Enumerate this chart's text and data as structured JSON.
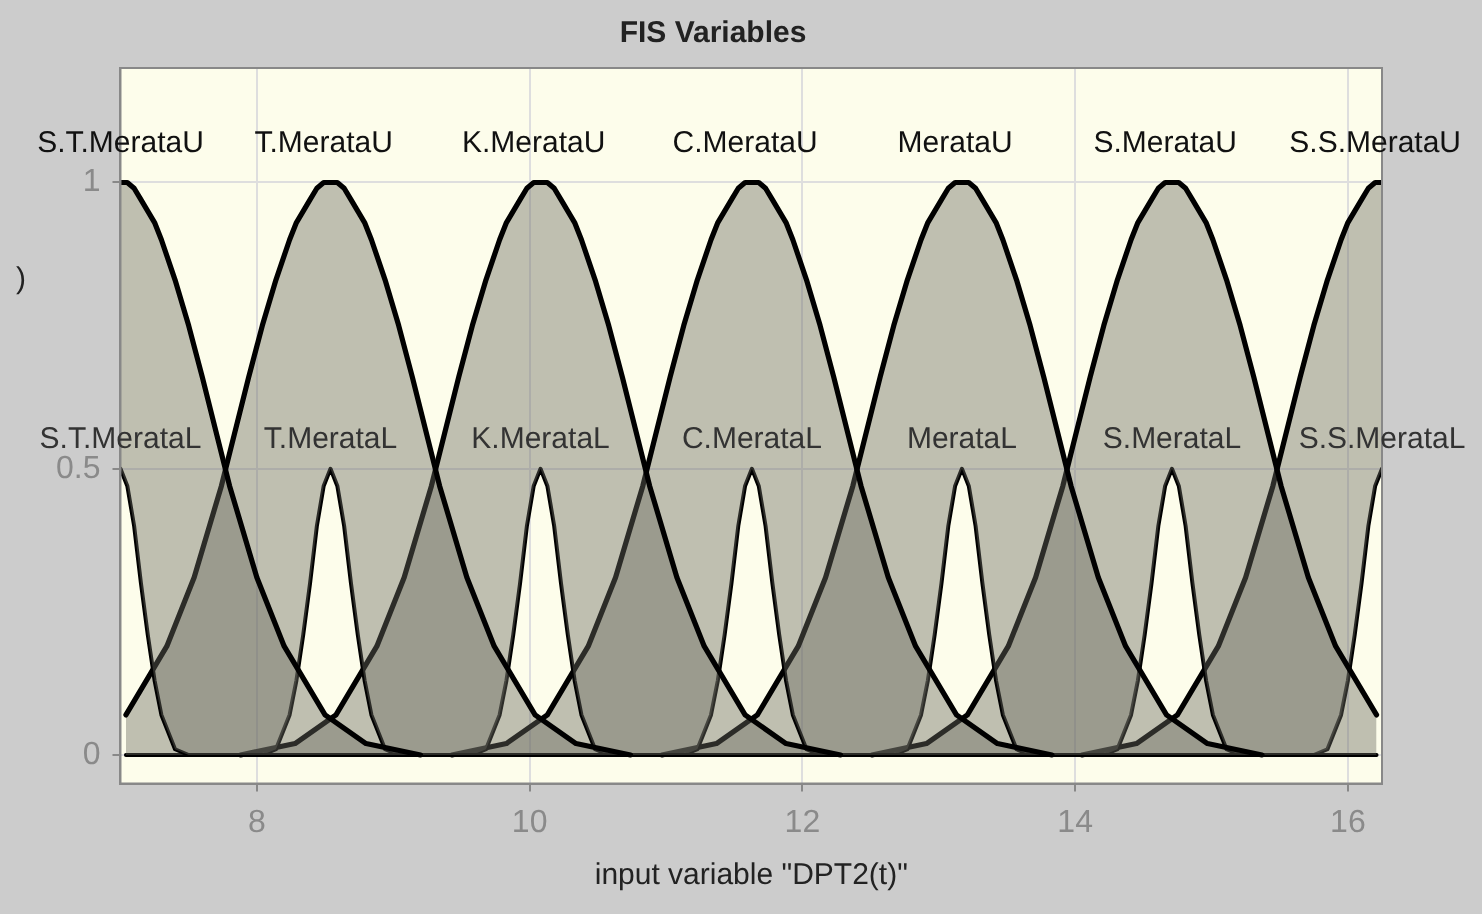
{
  "chart_data": {
    "type": "line",
    "title": "FIS Variables",
    "xlabel": "input variable \"DPT2(t)\"",
    "ylabel": ")",
    "xlim": [
      7,
      16.25
    ],
    "xticks": [
      8,
      10,
      12,
      14,
      16
    ],
    "ylim": [
      -0.05,
      1.2
    ],
    "yticks": [
      0,
      0.5,
      1
    ],
    "grid": true,
    "legend": false,
    "marker": "none",
    "line_style": "solid",
    "series": [
      {
        "name": "S.T.MerataU",
        "type": "area",
        "color": "#000000",
        "x": [
          7,
          7.05,
          7.1,
          7.15,
          7.2,
          7.25,
          7.3,
          7.4,
          7.5,
          7.6,
          7.8,
          8,
          8.2,
          8.5,
          8.8,
          9.2
        ],
        "values": [
          1,
          1,
          0.99,
          0.97,
          0.95,
          0.93,
          0.9,
          0.83,
          0.75,
          0.66,
          0.47,
          0.31,
          0.19,
          0.07,
          0.02,
          0
        ]
      },
      {
        "name": "S.T.MerataL",
        "type": "line",
        "color": "#000000",
        "x": [
          7,
          7.05,
          7.1,
          7.15,
          7.2,
          7.25,
          7.3,
          7.4,
          7.5,
          7.6,
          7.8,
          8,
          8.2,
          8.5,
          8.8,
          9.2
        ],
        "values": [
          0.5,
          0.47,
          0.4,
          0.3,
          0.21,
          0.13,
          0.07,
          0.01,
          0,
          0,
          0,
          0,
          0,
          0,
          0,
          0
        ]
      },
      {
        "name": "T.MerataU",
        "type": "area",
        "color": "#000000",
        "x": [
          7.04,
          7.34,
          7.54,
          7.74,
          7.94,
          8.04,
          8.14,
          8.24,
          8.29,
          8.34,
          8.39,
          8.44,
          8.49,
          8.54,
          8.59,
          8.64,
          8.69,
          8.74,
          8.79,
          8.84,
          8.94,
          9.04,
          9.14,
          9.34,
          9.54,
          9.74,
          10.04,
          10.34,
          10.74
        ],
        "values": [
          0.07,
          0.19,
          0.31,
          0.47,
          0.66,
          0.75,
          0.83,
          0.9,
          0.93,
          0.95,
          0.97,
          0.99,
          1,
          1,
          1,
          0.99,
          0.97,
          0.95,
          0.93,
          0.9,
          0.83,
          0.75,
          0.66,
          0.47,
          0.31,
          0.19,
          0.07,
          0.02,
          0
        ]
      },
      {
        "name": "T.MerataL",
        "type": "line",
        "color": "#000000",
        "x": [
          7.04,
          7.34,
          7.54,
          7.74,
          7.94,
          8.04,
          8.14,
          8.24,
          8.29,
          8.34,
          8.39,
          8.44,
          8.49,
          8.54,
          8.59,
          8.64,
          8.69,
          8.74,
          8.79,
          8.84,
          8.94,
          9.04,
          9.14,
          9.34,
          9.54,
          9.74,
          10.04,
          10.34,
          10.74
        ],
        "values": [
          0,
          0,
          0,
          0,
          0,
          0,
          0.01,
          0.07,
          0.13,
          0.21,
          0.3,
          0.4,
          0.47,
          0.5,
          0.47,
          0.4,
          0.3,
          0.21,
          0.13,
          0.07,
          0.01,
          0,
          0,
          0,
          0,
          0,
          0,
          0,
          0
        ]
      },
      {
        "name": "K.MerataU",
        "type": "area",
        "color": "#000000",
        "x": [
          7.88,
          8.28,
          8.58,
          8.88,
          9.08,
          9.28,
          9.48,
          9.58,
          9.68,
          9.78,
          9.83,
          9.88,
          9.93,
          9.98,
          10.03,
          10.08,
          10.13,
          10.18,
          10.23,
          10.28,
          10.33,
          10.38,
          10.48,
          10.58,
          10.68,
          10.88,
          11.08,
          11.28,
          11.58,
          11.88,
          12.28
        ],
        "values": [
          0,
          0.02,
          0.07,
          0.19,
          0.31,
          0.47,
          0.66,
          0.75,
          0.83,
          0.9,
          0.93,
          0.95,
          0.97,
          0.99,
          1,
          1,
          1,
          0.99,
          0.97,
          0.95,
          0.93,
          0.9,
          0.83,
          0.75,
          0.66,
          0.47,
          0.31,
          0.19,
          0.07,
          0.02,
          0
        ]
      },
      {
        "name": "K.MerataL",
        "type": "line",
        "color": "#000000",
        "x": [
          7.88,
          8.28,
          8.58,
          8.88,
          9.08,
          9.28,
          9.48,
          9.58,
          9.68,
          9.78,
          9.83,
          9.88,
          9.93,
          9.98,
          10.03,
          10.08,
          10.13,
          10.18,
          10.23,
          10.28,
          10.33,
          10.38,
          10.48,
          10.58,
          10.68,
          10.88,
          11.08,
          11.28,
          11.58,
          11.88,
          12.28
        ],
        "values": [
          0,
          0,
          0,
          0,
          0,
          0,
          0,
          0,
          0.01,
          0.07,
          0.13,
          0.21,
          0.3,
          0.4,
          0.47,
          0.5,
          0.47,
          0.4,
          0.3,
          0.21,
          0.13,
          0.07,
          0.01,
          0,
          0,
          0,
          0,
          0,
          0,
          0,
          0
        ]
      },
      {
        "name": "C.MerataU",
        "type": "area",
        "color": "#000000",
        "x": [
          9.43,
          9.83,
          10.13,
          10.43,
          10.63,
          10.83,
          11.03,
          11.13,
          11.23,
          11.33,
          11.38,
          11.43,
          11.48,
          11.53,
          11.58,
          11.63,
          11.68,
          11.73,
          11.78,
          11.83,
          11.88,
          11.93,
          12.03,
          12.13,
          12.23,
          12.43,
          12.63,
          12.83,
          13.13,
          13.43,
          13.83
        ],
        "values": [
          0,
          0.02,
          0.07,
          0.19,
          0.31,
          0.47,
          0.66,
          0.75,
          0.83,
          0.9,
          0.93,
          0.95,
          0.97,
          0.99,
          1,
          1,
          1,
          0.99,
          0.97,
          0.95,
          0.93,
          0.9,
          0.83,
          0.75,
          0.66,
          0.47,
          0.31,
          0.19,
          0.07,
          0.02,
          0
        ]
      },
      {
        "name": "C.MerataL",
        "type": "line",
        "color": "#000000",
        "x": [
          9.43,
          9.83,
          10.13,
          10.43,
          10.63,
          10.83,
          11.03,
          11.13,
          11.23,
          11.33,
          11.38,
          11.43,
          11.48,
          11.53,
          11.58,
          11.63,
          11.68,
          11.73,
          11.78,
          11.83,
          11.88,
          11.93,
          12.03,
          12.13,
          12.23,
          12.43,
          12.63,
          12.83,
          13.13,
          13.43,
          13.83
        ],
        "values": [
          0,
          0,
          0,
          0,
          0,
          0,
          0,
          0,
          0.01,
          0.07,
          0.13,
          0.21,
          0.3,
          0.4,
          0.47,
          0.5,
          0.47,
          0.4,
          0.3,
          0.21,
          0.13,
          0.07,
          0.01,
          0,
          0,
          0,
          0,
          0,
          0,
          0,
          0
        ]
      },
      {
        "name": "MerataU",
        "type": "area",
        "color": "#000000",
        "x": [
          10.97,
          11.37,
          11.67,
          11.97,
          12.17,
          12.37,
          12.57,
          12.67,
          12.77,
          12.87,
          12.92,
          12.97,
          13.02,
          13.07,
          13.12,
          13.17,
          13.22,
          13.27,
          13.32,
          13.37,
          13.42,
          13.47,
          13.57,
          13.67,
          13.77,
          13.97,
          14.17,
          14.37,
          14.67,
          14.97,
          15.37
        ],
        "values": [
          0,
          0.02,
          0.07,
          0.19,
          0.31,
          0.47,
          0.66,
          0.75,
          0.83,
          0.9,
          0.93,
          0.95,
          0.97,
          0.99,
          1,
          1,
          1,
          0.99,
          0.97,
          0.95,
          0.93,
          0.9,
          0.83,
          0.75,
          0.66,
          0.47,
          0.31,
          0.19,
          0.07,
          0.02,
          0
        ]
      },
      {
        "name": "MerataL",
        "type": "line",
        "color": "#000000",
        "x": [
          10.97,
          11.37,
          11.67,
          11.97,
          12.17,
          12.37,
          12.57,
          12.67,
          12.77,
          12.87,
          12.92,
          12.97,
          13.02,
          13.07,
          13.12,
          13.17,
          13.22,
          13.27,
          13.32,
          13.37,
          13.42,
          13.47,
          13.57,
          13.67,
          13.77,
          13.97,
          14.17,
          14.37,
          14.67,
          14.97,
          15.37
        ],
        "values": [
          0,
          0,
          0,
          0,
          0,
          0,
          0,
          0,
          0.01,
          0.07,
          0.13,
          0.21,
          0.3,
          0.4,
          0.47,
          0.5,
          0.47,
          0.4,
          0.3,
          0.21,
          0.13,
          0.07,
          0.01,
          0,
          0,
          0,
          0,
          0,
          0,
          0,
          0
        ]
      },
      {
        "name": "S.MerataU",
        "type": "area",
        "color": "#000000",
        "x": [
          12.51,
          12.91,
          13.21,
          13.51,
          13.71,
          13.91,
          14.11,
          14.21,
          14.31,
          14.41,
          14.46,
          14.51,
          14.56,
          14.61,
          14.66,
          14.71,
          14.76,
          14.81,
          14.86,
          14.91,
          14.96,
          15.01,
          15.11,
          15.21,
          15.31,
          15.51,
          15.71,
          15.91,
          16.21
        ],
        "values": [
          0,
          0.02,
          0.07,
          0.19,
          0.31,
          0.47,
          0.66,
          0.75,
          0.83,
          0.9,
          0.93,
          0.95,
          0.97,
          0.99,
          1,
          1,
          1,
          0.99,
          0.97,
          0.95,
          0.93,
          0.9,
          0.83,
          0.75,
          0.66,
          0.47,
          0.31,
          0.19,
          0.07
        ]
      },
      {
        "name": "S.MerataL",
        "type": "line",
        "color": "#000000",
        "x": [
          12.51,
          12.91,
          13.21,
          13.51,
          13.71,
          13.91,
          14.11,
          14.21,
          14.31,
          14.41,
          14.46,
          14.51,
          14.56,
          14.61,
          14.66,
          14.71,
          14.76,
          14.81,
          14.86,
          14.91,
          14.96,
          15.01,
          15.11,
          15.21,
          15.31,
          15.51,
          15.71,
          15.91,
          16.21
        ],
        "values": [
          0,
          0,
          0,
          0,
          0,
          0,
          0,
          0,
          0.01,
          0.07,
          0.13,
          0.21,
          0.3,
          0.4,
          0.47,
          0.5,
          0.47,
          0.4,
          0.3,
          0.21,
          0.13,
          0.07,
          0.01,
          0,
          0,
          0,
          0,
          0,
          0
        ]
      },
      {
        "name": "S.S.MerataU",
        "type": "area",
        "color": "#000000",
        "x": [
          14.05,
          14.45,
          14.75,
          15.05,
          15.25,
          15.45,
          15.65,
          15.75,
          15.85,
          15.95,
          16,
          16.05,
          16.1,
          16.15,
          16.2,
          16.25
        ],
        "values": [
          0,
          0.02,
          0.07,
          0.19,
          0.31,
          0.47,
          0.66,
          0.75,
          0.83,
          0.9,
          0.93,
          0.95,
          0.97,
          0.99,
          1,
          1
        ]
      },
      {
        "name": "S.S.MerataL",
        "type": "line",
        "color": "#000000",
        "x": [
          14.05,
          14.45,
          14.75,
          15.05,
          15.25,
          15.45,
          15.65,
          15.75,
          15.85,
          15.95,
          16,
          16.05,
          16.1,
          16.15,
          16.2,
          16.25
        ],
        "values": [
          0,
          0,
          0,
          0,
          0,
          0,
          0,
          0,
          0.01,
          0.07,
          0.13,
          0.21,
          0.3,
          0.4,
          0.47,
          0.5
        ]
      }
    ]
  }
}
